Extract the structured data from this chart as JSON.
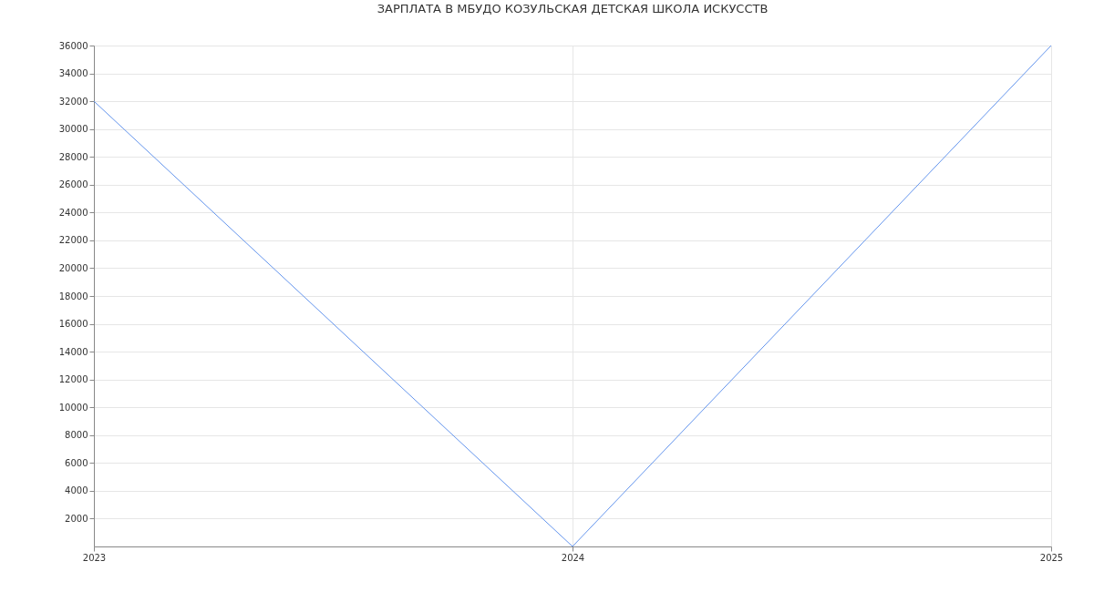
{
  "chart_data": {
    "type": "line",
    "title": "ЗАРПЛАТА В МБУДО КОЗУЛЬСКАЯ ДЕТСКАЯ ШКОЛА ИСКУССТВ",
    "x": [
      2023,
      2024,
      2025
    ],
    "series": [
      {
        "color": "#6495ed",
        "values": [
          32000,
          0,
          36000
        ]
      }
    ],
    "xlim": [
      2023,
      2025
    ],
    "xticks": [
      2023,
      2024,
      2025
    ],
    "ylim": [
      0,
      36000
    ],
    "yticks": [
      2000,
      4000,
      6000,
      8000,
      10000,
      12000,
      14000,
      16000,
      18000,
      20000,
      22000,
      24000,
      26000,
      28000,
      30000,
      32000,
      34000,
      36000
    ],
    "grid": true,
    "line_style": "solid"
  }
}
